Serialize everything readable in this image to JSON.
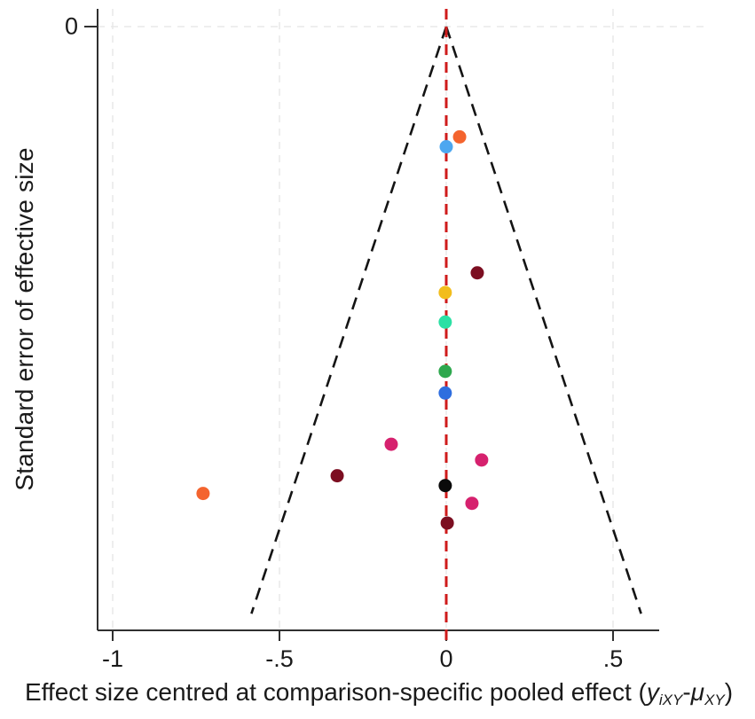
{
  "chart_data": {
    "type": "scatter",
    "subtype": "funnel-plot",
    "title": "",
    "ylabel": "Standard error of effective size",
    "xlabel_full": "Effect size centred at comparison-specific pooled effect (yiXY-μXY)",
    "xlabel_parts": {
      "prefix": "Effect size centred at comparison-specific pooled effect (",
      "y_var": "y",
      "y_sub": "iXY",
      "minus": "-",
      "mu_var": "μ",
      "mu_sub": "XY",
      "suffix": ")"
    },
    "x_ticks": [
      {
        "label": "-1",
        "value": -1.0
      },
      {
        "label": "-.5",
        "value": -0.5
      },
      {
        "label": "0",
        "value": 0.0
      },
      {
        "label": ".5",
        "value": 0.5
      }
    ],
    "y_ticks": [
      {
        "label": "0",
        "value": 0.0
      }
    ],
    "x_range_shown": [
      -1.05,
      0.64
    ],
    "se_range_shown": [
      0,
      0.3
    ],
    "grid": {
      "color": "#e8e8e8",
      "style": "dashed",
      "v_lines_x": [
        -1.0,
        -0.5,
        0.0,
        0.5
      ],
      "h_lines_se": [
        0.0
      ]
    },
    "reference_line": {
      "x": 0.0,
      "color": "#cf1b1b",
      "style": "dashed"
    },
    "funnel": {
      "apex_x": 0.0,
      "apex_se": 0.0,
      "base_se": 0.298,
      "slope": 1.96,
      "pseudo_ci": "95%",
      "color": "#141414",
      "style": "dashed"
    },
    "axis_color": "#303030",
    "points": [
      {
        "x": 0.0,
        "se": 0.061,
        "color": "#4ca7f0",
        "color_name": "sky-blue"
      },
      {
        "x": 0.04,
        "se": 0.056,
        "color": "#f4642e",
        "color_name": "orange"
      },
      {
        "x": 0.093,
        "se": 0.125,
        "color": "#7c0e21",
        "color_name": "dark-maroon"
      },
      {
        "x": -0.003,
        "se": 0.135,
        "color": "#f2bd1d",
        "color_name": "gold"
      },
      {
        "x": -0.003,
        "se": 0.15,
        "color": "#2ce0a4",
        "color_name": "turquoise"
      },
      {
        "x": -0.003,
        "se": 0.175,
        "color": "#2ea84e",
        "color_name": "green"
      },
      {
        "x": -0.003,
        "se": 0.186,
        "color": "#2e6edf",
        "color_name": "royal-blue"
      },
      {
        "x": -0.165,
        "se": 0.212,
        "color": "#d6216e",
        "color_name": "magenta"
      },
      {
        "x": 0.106,
        "se": 0.22,
        "color": "#d6216e",
        "color_name": "magenta"
      },
      {
        "x": -0.327,
        "se": 0.228,
        "color": "#7c0e21",
        "color_name": "dark-maroon"
      },
      {
        "x": -0.003,
        "se": 0.233,
        "color": "#0a0a0a",
        "color_name": "black"
      },
      {
        "x": -0.729,
        "se": 0.237,
        "color": "#f4642e",
        "color_name": "orange"
      },
      {
        "x": 0.077,
        "se": 0.242,
        "color": "#d6216e",
        "color_name": "magenta"
      },
      {
        "x": 0.003,
        "se": 0.252,
        "color": "#7c0e21",
        "color_name": "dark-maroon"
      }
    ]
  }
}
